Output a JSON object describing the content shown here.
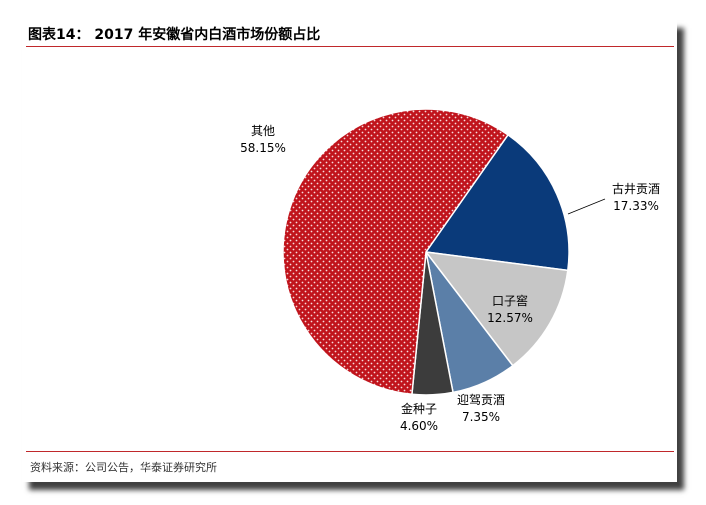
{
  "title": "图表14：  2017 年安徽省内白酒市场份额占比",
  "source": "资料来源：公司公告，华泰证券研究所",
  "colors": {
    "rule": "#c0282b",
    "其他": "#c0141c",
    "古井贡酒": "#0a3a7a",
    "口子窖": "#c6c6c6",
    "迎驾贡酒": "#5b7fa8",
    "金种子": "#3c3c3c"
  },
  "chart_data": {
    "type": "pie",
    "title": "",
    "series": [
      {
        "slices": [
          {
            "name": "古井贡酒",
            "value": 17.33,
            "label": "17.33%"
          },
          {
            "name": "口子窖",
            "value": 12.57,
            "label": "12.57%"
          },
          {
            "name": "迎驾贡酒",
            "value": 7.35,
            "label": "7.35%"
          },
          {
            "name": "金种子",
            "value": 4.6,
            "label": "4.60%"
          },
          {
            "name": "其他",
            "value": 58.15,
            "label": "58.15%"
          }
        ]
      }
    ]
  }
}
